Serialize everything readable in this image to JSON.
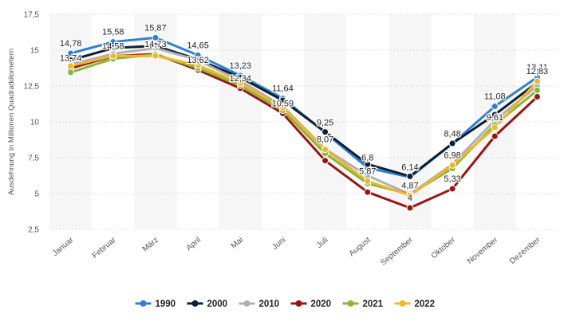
{
  "chart_data": {
    "type": "line",
    "title": "",
    "xlabel": "",
    "ylabel": "Ausdehnung in Millionen Quadratkilometern",
    "categories": [
      "Januar",
      "Februar",
      "März",
      "April",
      "Mai",
      "Juni",
      "Juli",
      "August",
      "September",
      "Oktober",
      "November",
      "Dezember"
    ],
    "ylim": [
      2.5,
      17.5
    ],
    "yticks": [
      "2,5",
      "5",
      "7,5",
      "10",
      "12,5",
      "15",
      "17,5"
    ],
    "ytick_values": [
      2.5,
      5,
      7.5,
      10,
      12.5,
      15,
      17.5
    ],
    "grid": "horizontal",
    "legend_position": "bottom",
    "series": [
      {
        "name": "1990",
        "color": "#2f80d1",
        "values": [
          14.78,
          15.58,
          15.87,
          14.65,
          13.23,
          11.64,
          9.25,
          6.8,
          6.14,
          8.48,
          11.08,
          13.11
        ]
      },
      {
        "name": "2000",
        "color": "#0f1f33",
        "values": [
          14.3,
          15.15,
          15.3,
          14.35,
          13.1,
          11.5,
          9.3,
          7.05,
          6.2,
          8.5,
          10.5,
          12.75
        ]
      },
      {
        "name": "2010",
        "color": "#b0b0b0",
        "values": [
          14.0,
          14.75,
          15.15,
          14.3,
          12.85,
          11.1,
          8.1,
          6.25,
          4.95,
          7.05,
          10.1,
          12.5
        ]
      },
      {
        "name": "2020",
        "color": "#9b1414",
        "values": [
          13.74,
          14.58,
          14.73,
          13.62,
          12.34,
          10.59,
          7.3,
          5.1,
          4.0,
          5.33,
          9.0,
          11.75
        ]
      },
      {
        "name": "2021",
        "color": "#86b82f",
        "values": [
          13.45,
          14.4,
          14.7,
          13.75,
          12.55,
          10.8,
          7.8,
          5.7,
          4.95,
          6.75,
          9.8,
          12.2
        ]
      },
      {
        "name": "2022",
        "color": "#f0b52a",
        "values": [
          13.9,
          14.6,
          14.6,
          13.95,
          12.7,
          11.0,
          8.07,
          5.87,
          4.87,
          6.98,
          9.61,
          12.83
        ]
      }
    ],
    "data_labels": [
      {
        "month": "Januar",
        "value": 14.78,
        "text": "14,78"
      },
      {
        "month": "Januar",
        "value": 13.74,
        "text": "13,74"
      },
      {
        "month": "Februar",
        "value": 15.58,
        "text": "15,58"
      },
      {
        "month": "Februar",
        "value": 14.58,
        "text": "14,58"
      },
      {
        "month": "März",
        "value": 15.87,
        "text": "15,87"
      },
      {
        "month": "März",
        "value": 14.73,
        "text": "14,73"
      },
      {
        "month": "April",
        "value": 14.65,
        "text": "14,65"
      },
      {
        "month": "April",
        "value": 13.62,
        "text": "13,62"
      },
      {
        "month": "Mai",
        "value": 13.23,
        "text": "13,23"
      },
      {
        "month": "Mai",
        "value": 12.34,
        "text": "12,34"
      },
      {
        "month": "Juni",
        "value": 11.64,
        "text": "11,64"
      },
      {
        "month": "Juni",
        "value": 10.59,
        "text": "10,59"
      },
      {
        "month": "Juli",
        "value": 9.25,
        "text": "9,25"
      },
      {
        "month": "Juli",
        "value": 8.07,
        "text": "8,07"
      },
      {
        "month": "August",
        "value": 6.8,
        "text": "6,8"
      },
      {
        "month": "August",
        "value": 5.87,
        "text": "5,87"
      },
      {
        "month": "September",
        "value": 6.14,
        "text": "6,14"
      },
      {
        "month": "September",
        "value": 4.87,
        "text": "4,87"
      },
      {
        "month": "September",
        "value": 4.0,
        "text": "4"
      },
      {
        "month": "Oktober",
        "value": 8.48,
        "text": "8,48"
      },
      {
        "month": "Oktober",
        "value": 6.98,
        "text": "6,98"
      },
      {
        "month": "Oktober",
        "value": 5.33,
        "text": "5,33"
      },
      {
        "month": "November",
        "value": 11.08,
        "text": "11,08"
      },
      {
        "month": "November",
        "value": 9.61,
        "text": "9,61"
      },
      {
        "month": "Dezember",
        "value": 13.11,
        "text": "13,11"
      },
      {
        "month": "Dezember",
        "value": 12.83,
        "text": "12,83"
      }
    ]
  }
}
